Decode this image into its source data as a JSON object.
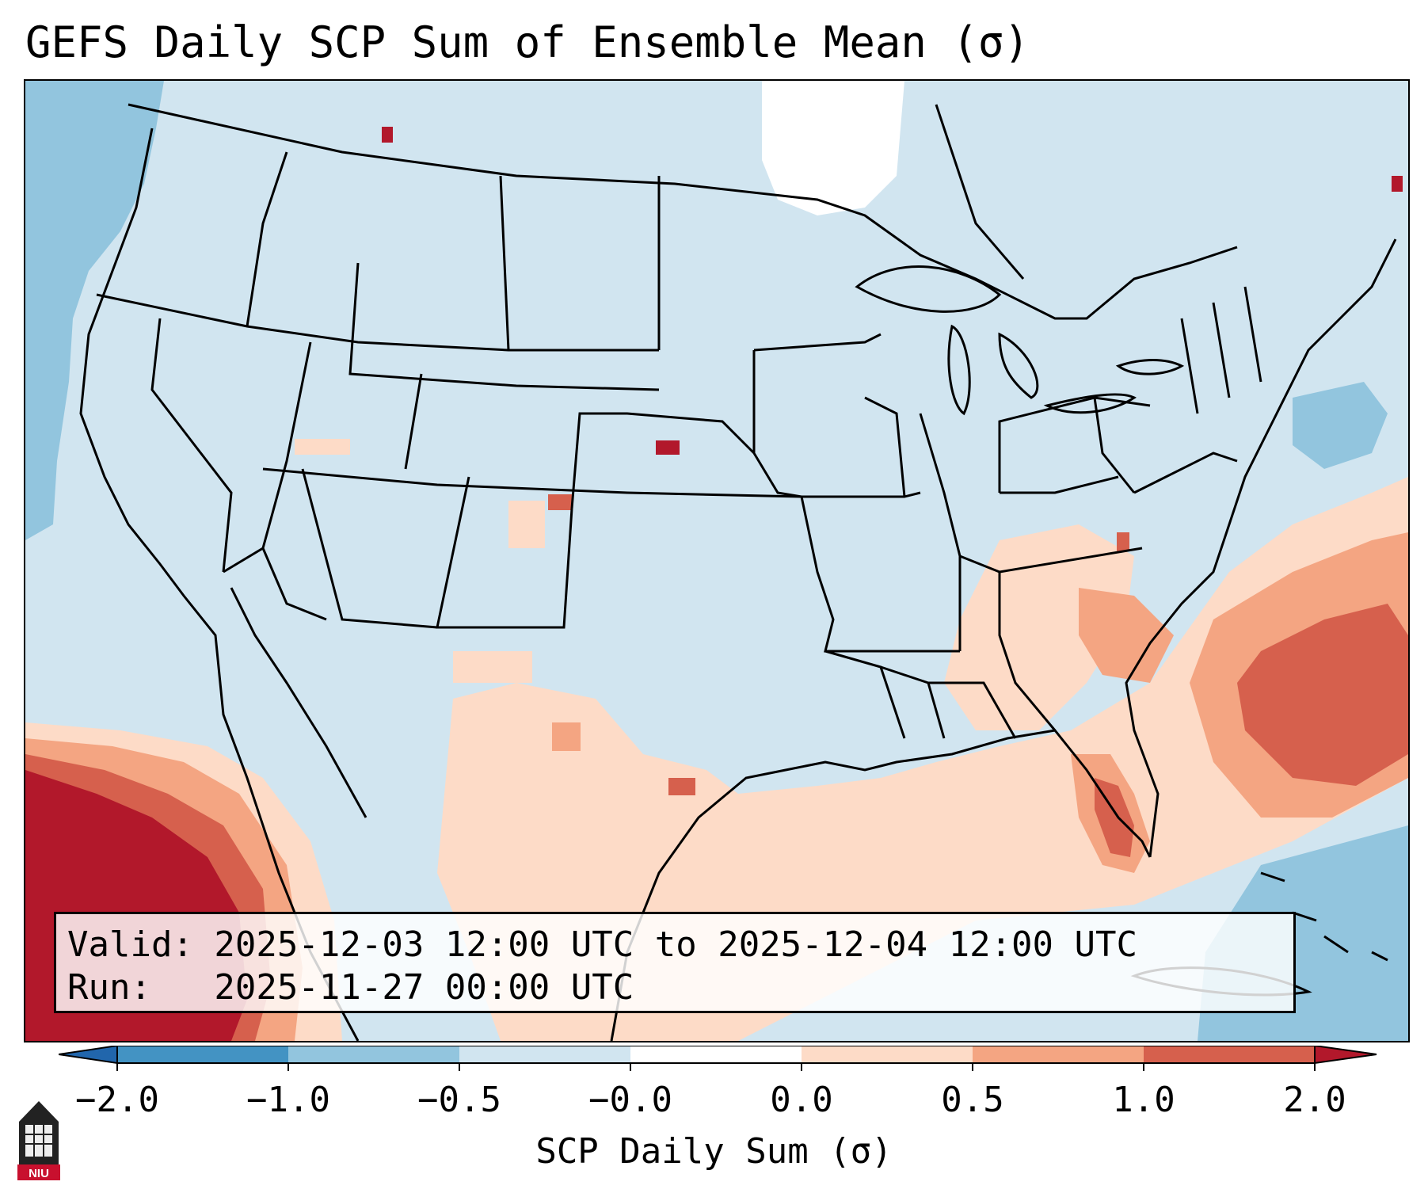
{
  "title": "GEFS Daily SCP Sum of Ensemble Mean (σ)",
  "info": {
    "valid_line": "Valid: 2025-12-03 12:00 UTC to 2025-12-04 12:00 UTC",
    "run_line": "Run:   2025-11-27 00:00 UTC"
  },
  "colorbar": {
    "label": "SCP Daily Sum (σ)",
    "ticks": [
      "−2.0",
      "−1.0",
      "−0.5",
      "−0.0",
      "0.0",
      "0.5",
      "1.0",
      "2.0"
    ],
    "bins": [
      {
        "range": "< -2.0",
        "color": "#2166ac"
      },
      {
        "range": "-2.0 to -1.0",
        "color": "#4393c3"
      },
      {
        "range": "-1.0 to -0.5",
        "color": "#92c5de"
      },
      {
        "range": "-0.5 to -0.0",
        "color": "#d1e5f0"
      },
      {
        "range": "-0.0 to 0.0",
        "color": "#ffffff"
      },
      {
        "range": "0.0 to 0.5",
        "color": "#fddbc7"
      },
      {
        "range": "0.5 to 1.0",
        "color": "#f4a582"
      },
      {
        "range": "1.0 to 2.0",
        "color": "#d6604d"
      },
      {
        "range": "> 2.0",
        "color": "#b2182b"
      }
    ]
  },
  "logo": {
    "text": "NIU",
    "color": "#c8102e"
  }
}
